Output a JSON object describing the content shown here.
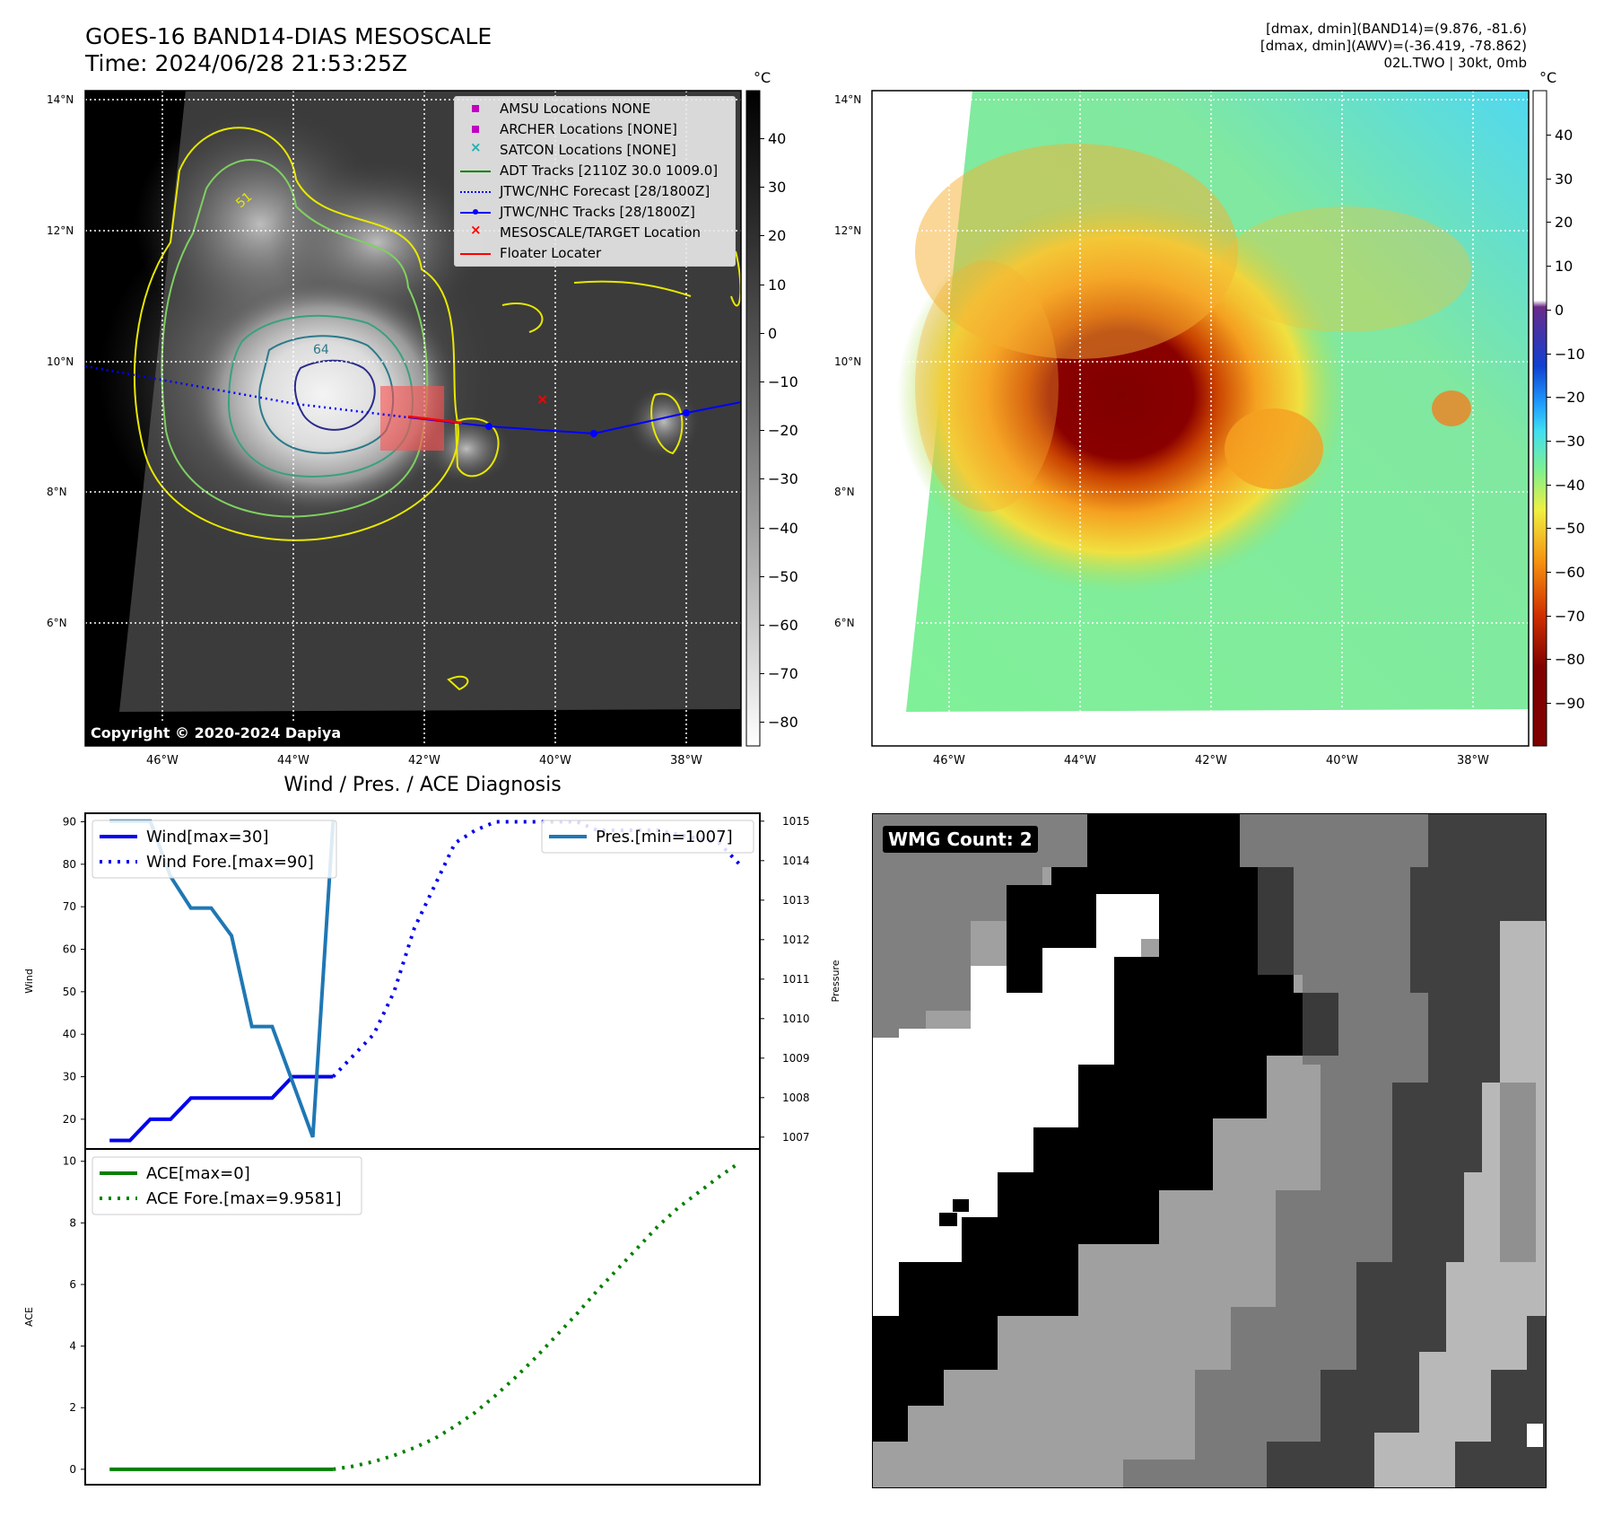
{
  "panel1": {
    "title_line1": "GOES-16 BAND14-DIAS MESOSCALE",
    "title_line2": "Time: 2024/06/28 21:53:25Z",
    "copyright": "Copyright © 2020-2024 Dapiya",
    "colorbar_unit": "°C",
    "colorbar_ticks": [
      "40",
      "30",
      "20",
      "10",
      "0",
      "−10",
      "−20",
      "−30",
      "−40",
      "−50",
      "−60",
      "−70",
      "−80"
    ],
    "lat_labels": [
      "14°N",
      "12°N",
      "10°N",
      "8°N",
      "6°N"
    ],
    "lon_labels": [
      "46°W",
      "44°W",
      "42°W",
      "40°W",
      "38°W"
    ],
    "contour_label_64": "64",
    "contour_label_51": "51",
    "legend": [
      {
        "label": "AMSU Locations NONE",
        "color": "#c000c0",
        "marker": "square"
      },
      {
        "label": "ARCHER Locations [NONE]",
        "color": "#c000c0",
        "marker": "square"
      },
      {
        "label": "SATCON Locations [NONE]",
        "color": "#20b0b0",
        "marker": "x"
      },
      {
        "label": "ADT Tracks [2110Z 30.0 1009.0]",
        "color": "#008000",
        "marker": "line"
      },
      {
        "label": "JTWC/NHC Forecast [28/1800Z]",
        "color": "#0000ff",
        "marker": "dotted"
      },
      {
        "label": "JTWC/NHC Tracks [28/1800Z]",
        "color": "#0000ff",
        "marker": "line-dot"
      },
      {
        "label": "MESOSCALE/TARGET Location",
        "color": "#ff0000",
        "marker": "x"
      },
      {
        "label": "Floater Locater",
        "color": "#ff0000",
        "marker": "line"
      }
    ]
  },
  "panel2": {
    "header_line1": "[dmax, dmin](BAND14)=(9.876, -81.6)",
    "header_line2": "[dmax, dmin](AWV)=(-36.419, -78.862)",
    "header_line3": "02L.TWO | 30kt, 0mb",
    "colorbar_unit": "°C",
    "colorbar_ticks": [
      "40",
      "30",
      "20",
      "10",
      "0",
      "−10",
      "−20",
      "−30",
      "−40",
      "−50",
      "−60",
      "−70",
      "−80",
      "−90"
    ],
    "lat_labels": [
      "14°N",
      "12°N",
      "10°N",
      "8°N",
      "6°N"
    ],
    "lon_labels": [
      "46°W",
      "44°W",
      "42°W",
      "40°W",
      "38°W"
    ]
  },
  "panel3": {
    "title": "Wind / Pres. / ACE Diagnosis",
    "ylabel_wind": "Wind",
    "ylabel_pres": "Pressure",
    "ylabel_ace": "ACE",
    "legend_wind": "Wind[max=30]",
    "legend_wind_fore": "Wind Fore.[max=90]",
    "legend_pres": "Pres.[min=1007]",
    "legend_ace": "ACE[max=0]",
    "legend_ace_fore": "ACE Fore.[max=9.9581]"
  },
  "panel4": {
    "label": "WMG Count: 2"
  },
  "chart_data": [
    {
      "type": "line",
      "title": "Wind / Pres. / ACE Diagnosis",
      "ylabel": "Wind",
      "ylim": [
        13,
        92
      ],
      "yticks": [
        "90",
        "80",
        "70",
        "60",
        "50",
        "40",
        "30",
        "20"
      ],
      "series": [
        {
          "name": "Wind[max=30]",
          "color": "#0000ee",
          "style": "solid",
          "x": [
            0,
            1,
            2,
            3,
            4,
            5,
            6,
            7,
            8,
            9,
            10,
            11
          ],
          "values": [
            15,
            15,
            20,
            20,
            25,
            25,
            25,
            25,
            25,
            30,
            30,
            30
          ]
        },
        {
          "name": "Wind Fore.[max=90]",
          "color": "#0000ee",
          "style": "dotted",
          "x": [
            11,
            12,
            13,
            14,
            15,
            16,
            17,
            18,
            19,
            20,
            21,
            22,
            23,
            24,
            25,
            26,
            27,
            28,
            29,
            30,
            31
          ],
          "values": [
            30,
            35,
            40,
            50,
            65,
            75,
            85,
            88,
            90,
            90,
            90,
            90,
            90,
            88,
            88,
            88,
            88,
            87,
            86,
            85,
            80
          ]
        }
      ]
    },
    {
      "type": "line",
      "ylabel": "Pressure",
      "ylim": [
        1006.7,
        1015.2
      ],
      "yticks": [
        "1015",
        "1014",
        "1013",
        "1012",
        "1011",
        "1010",
        "1009",
        "1008",
        "1007"
      ],
      "series": [
        {
          "name": "Pres.[min=1007]",
          "color": "#1f77b4",
          "style": "solid",
          "x": [
            0,
            1,
            2,
            3,
            4,
            5,
            6,
            7,
            8,
            9,
            10,
            11
          ],
          "values": [
            1015,
            1015,
            1015,
            1013.6,
            1012.8,
            1012.8,
            1012.1,
            1009.8,
            1009.8,
            1008.4,
            1007,
            1015
          ]
        }
      ]
    },
    {
      "type": "line",
      "ylabel": "ACE",
      "ylim": [
        -0.5,
        10.4
      ],
      "yticks": [
        "10",
        "8",
        "6",
        "4",
        "2",
        "0"
      ],
      "series": [
        {
          "name": "ACE[max=0]",
          "color": "#008000",
          "style": "solid",
          "x": [
            0,
            1,
            2,
            3,
            4,
            5,
            6,
            7,
            8,
            9,
            10,
            11
          ],
          "values": [
            0,
            0,
            0,
            0,
            0,
            0,
            0,
            0,
            0,
            0,
            0,
            0
          ]
        },
        {
          "name": "ACE Fore.[max=9.9581]",
          "color": "#008000",
          "style": "dotted",
          "x": [
            11,
            12,
            13,
            14,
            15,
            16,
            17,
            18,
            19,
            20,
            21,
            22,
            23,
            24,
            25,
            26,
            27,
            28,
            29,
            30,
            31
          ],
          "values": [
            0,
            0.1,
            0.25,
            0.45,
            0.7,
            1.0,
            1.4,
            1.85,
            2.4,
            3.0,
            3.65,
            4.35,
            5.05,
            5.8,
            6.5,
            7.2,
            7.9,
            8.5,
            9.0,
            9.5,
            9.9581
          ]
        }
      ]
    }
  ]
}
